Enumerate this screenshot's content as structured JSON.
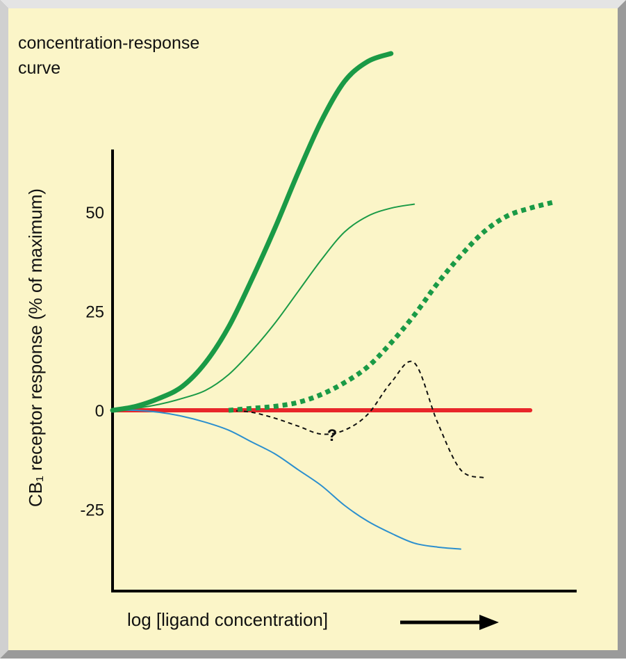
{
  "chart_data": {
    "type": "line",
    "title": "concentration-response curve",
    "y_label": "CB₁ receptor response (% of maximum)",
    "x_label": "log [ligand concentration]",
    "annotation": "?",
    "x": [
      0,
      5,
      10,
      15,
      20,
      25,
      30,
      35,
      40,
      45,
      50,
      55,
      60,
      65,
      70,
      75,
      80,
      85,
      90,
      95
    ],
    "xlim": [
      0,
      100
    ],
    "ylim": [
      -45.6,
      90.7
    ],
    "yticks": [
      50,
      25,
      0,
      -25
    ],
    "series": [
      {
        "color": "#e8262a",
        "width": 6,
        "dash": "none",
        "values": [
          0,
          0,
          0,
          0,
          0,
          0,
          0,
          0,
          0,
          0,
          0,
          0,
          0,
          0,
          0,
          0,
          0,
          0,
          0,
          null
        ]
      },
      {
        "color": "#2b8fce",
        "width": 2,
        "dash": "none",
        "values": [
          0,
          0,
          -0.5,
          -1.5,
          -3,
          -5,
          -8,
          -11,
          -15,
          -19,
          -24,
          -28,
          -31,
          -33.5,
          -34.5,
          -35,
          null,
          null,
          null,
          null
        ]
      },
      {
        "color": "#111111",
        "width": 2,
        "dash": "6 5",
        "values": [
          null,
          null,
          null,
          null,
          null,
          0,
          -0.5,
          -2,
          -4,
          -6,
          -5,
          -1,
          7,
          12,
          -3,
          -15,
          -17,
          null,
          null,
          null
        ]
      },
      {
        "color": "#1a9a46",
        "width": 2,
        "dash": "none",
        "values": [
          0,
          0.5,
          1.5,
          3,
          5,
          9,
          15,
          22,
          30,
          38,
          45,
          49,
          51,
          52,
          null,
          null,
          null,
          null,
          null,
          null
        ]
      },
      {
        "color": "#1a9a46",
        "width": 7,
        "dash": "7 6",
        "values": [
          null,
          null,
          null,
          null,
          null,
          0,
          0.5,
          1,
          2,
          4,
          7,
          11,
          17,
          24,
          32,
          39,
          45,
          49,
          51,
          52.5
        ]
      },
      {
        "color": "#1a9a46",
        "width": 7,
        "dash": "none",
        "values": [
          0,
          1,
          3,
          6,
          12,
          21,
          33,
          46,
          60,
          73,
          83,
          88,
          90,
          null,
          null,
          null,
          null,
          null,
          null,
          null
        ]
      }
    ]
  }
}
